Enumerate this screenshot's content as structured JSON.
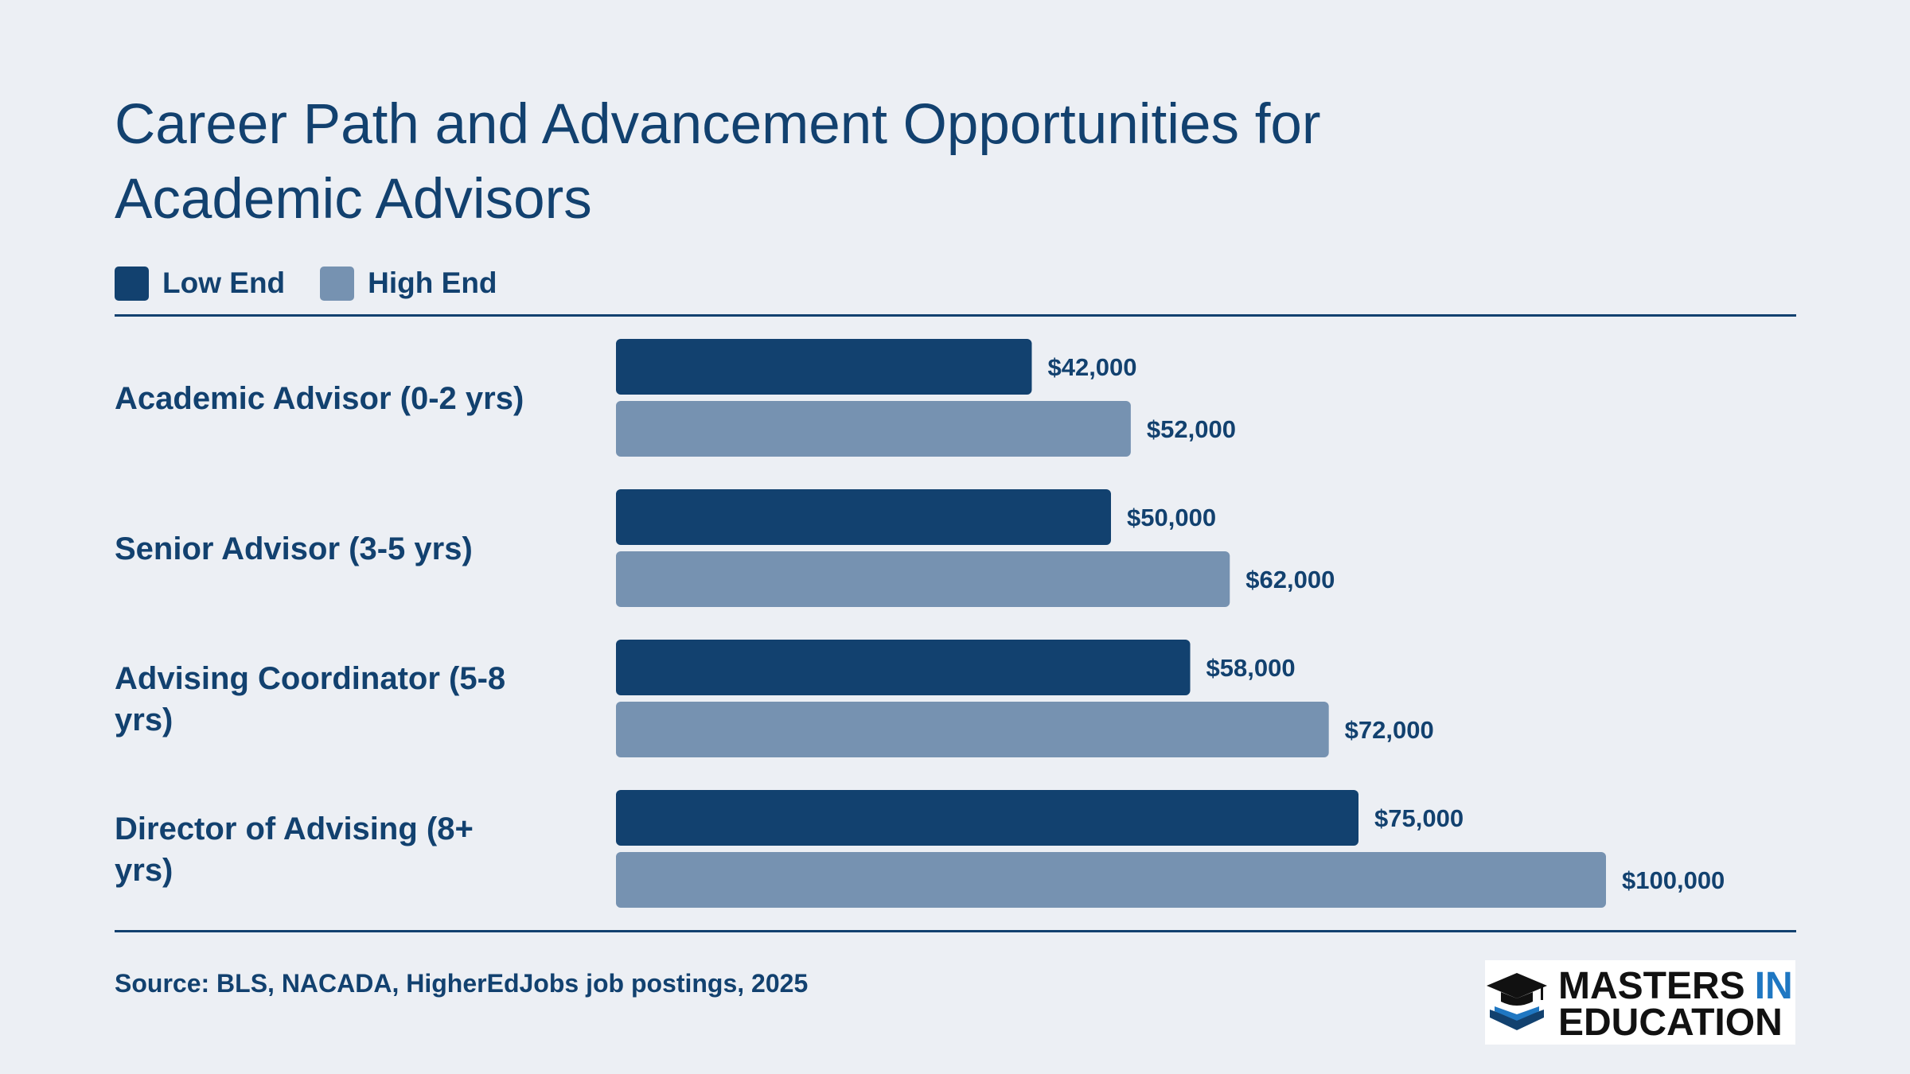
{
  "title": "Career Path and Advancement Opportunities for Academic Advisors",
  "legend": [
    {
      "label": "Low End",
      "color": "#12416F"
    },
    {
      "label": "High End",
      "color": "#7692B1"
    }
  ],
  "source": "Source: BLS, NACADA, HigherEdJobs job postings, 2025",
  "logo": {
    "line1_a": "MASTERS",
    "line1_b": "IN",
    "line2": "EDUCATION",
    "icon": "graduation-cap-book-icon"
  },
  "colors": {
    "background": "#ECEFF4",
    "text": "#12416F",
    "low": "#12416F",
    "high": "#7692B1",
    "logo_accent": "#1F77C2"
  },
  "chart_data": {
    "type": "bar",
    "orientation": "horizontal",
    "categories": [
      [
        "Academic Advisor (0-2 yrs)"
      ],
      [
        "Senior Advisor (3-5 yrs)"
      ],
      [
        "Advising Coordinator (5-8",
        "yrs)"
      ],
      [
        "Director of Advising (8+",
        "yrs)"
      ]
    ],
    "series": [
      {
        "name": "Low End",
        "values": [
          42000,
          50000,
          58000,
          75000
        ],
        "labels": [
          "$42,000",
          "$50,000",
          "$58,000",
          "$75,000"
        ]
      },
      {
        "name": "High End",
        "values": [
          52000,
          62000,
          72000,
          100000
        ],
        "labels": [
          "$52,000",
          "$62,000",
          "$72,000",
          "$100,000"
        ]
      }
    ],
    "xlim": [
      0,
      100000
    ],
    "grid": false,
    "legend_position": "top-left"
  }
}
